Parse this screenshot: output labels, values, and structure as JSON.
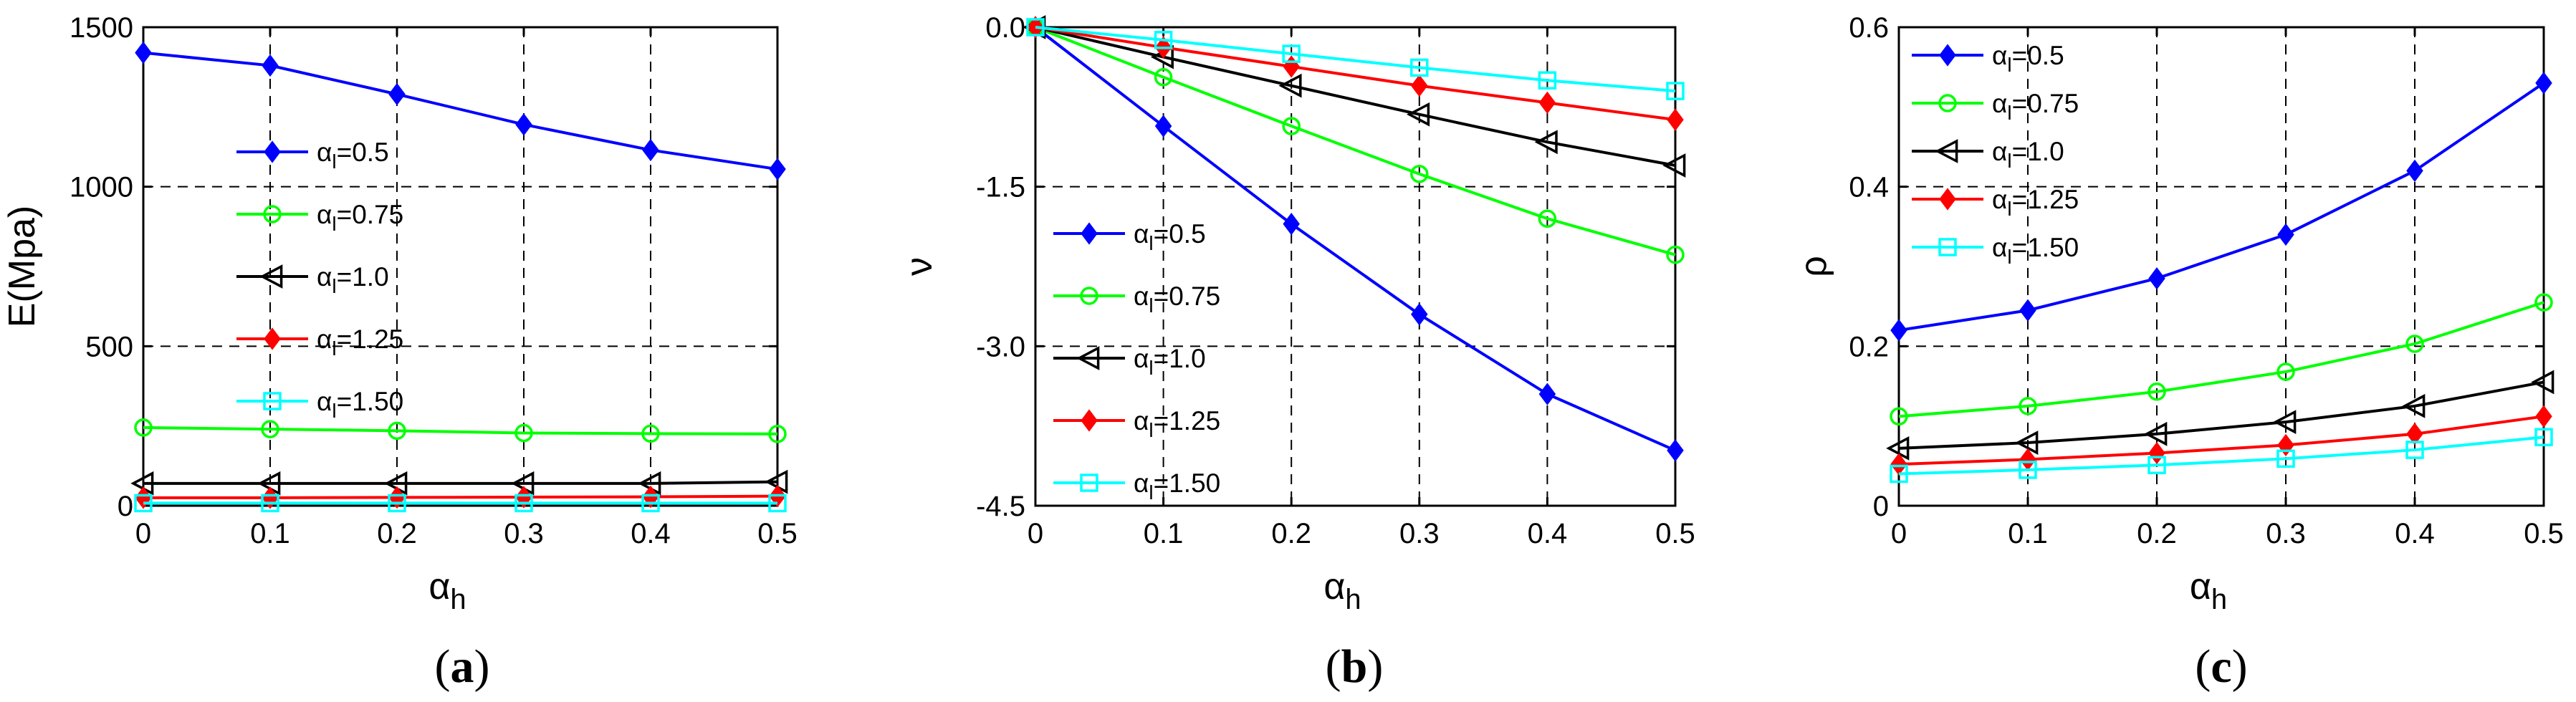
{
  "figure": {
    "panels": [
      {
        "id": "a",
        "paren_open": "(",
        "letter": "a",
        "paren_close": ")"
      },
      {
        "id": "b",
        "paren_open": "(",
        "letter": "b",
        "paren_close": ")"
      },
      {
        "id": "c",
        "paren_open": "(",
        "letter": "c",
        "paren_close": ")"
      }
    ]
  },
  "chart_data": [
    {
      "type": "line",
      "panel": "a",
      "xlabel": "α_h",
      "ylabel": "E(Mpa)",
      "xlim": [
        0,
        0.5
      ],
      "ylim": [
        0,
        1500
      ],
      "xticks": [
        0,
        0.1,
        0.2,
        0.3,
        0.4,
        0.5
      ],
      "xtick_labels": [
        "0",
        "0.1",
        "0.2",
        "0.3",
        "0.4",
        "0.5"
      ],
      "yticks": [
        0,
        500,
        1000,
        1500
      ],
      "ytick_labels": [
        "0",
        "500",
        "1000",
        "1500"
      ],
      "grid": true,
      "legend_position": "center-left",
      "x": [
        0,
        0.1,
        0.2,
        0.3,
        0.4,
        0.5
      ],
      "series": [
        {
          "name": "α_l=0.5",
          "legend_prefix": "α",
          "legend_sub": "l",
          "legend_value": "=0.5",
          "color": "#0000ff",
          "marker": "diamond-filled",
          "values": [
            1420,
            1380,
            1290,
            1195,
            1115,
            1055
          ]
        },
        {
          "name": "α_l=0.75",
          "legend_prefix": "α",
          "legend_sub": "l",
          "legend_value": "=0.75",
          "color": "#00ff00",
          "marker": "circle",
          "values": [
            245,
            240,
            235,
            228,
            226,
            225
          ]
        },
        {
          "name": "α_l=1.0",
          "legend_prefix": "α",
          "legend_sub": "l",
          "legend_value": "=1.0",
          "color": "#000000",
          "marker": "triangle-left",
          "values": [
            70,
            70,
            70,
            70,
            70,
            75
          ]
        },
        {
          "name": "α_l=1.25",
          "legend_prefix": "α",
          "legend_sub": "l",
          "legend_value": "=1.25",
          "color": "#ff0000",
          "marker": "diamond-filled",
          "values": [
            25,
            25,
            26,
            27,
            28,
            30
          ]
        },
        {
          "name": "α_l=1.50",
          "legend_prefix": "α",
          "legend_sub": "l",
          "legend_value": "=1.50",
          "color": "#00ffff",
          "marker": "square",
          "values": [
            8,
            8,
            8,
            8,
            8,
            8
          ]
        }
      ]
    },
    {
      "type": "line",
      "panel": "b",
      "xlabel": "α_h",
      "ylabel": "ν",
      "xlim": [
        0,
        0.5
      ],
      "ylim": [
        -4.5,
        0
      ],
      "xticks": [
        0,
        0.1,
        0.2,
        0.3,
        0.4,
        0.5
      ],
      "xtick_labels": [
        "0",
        "0.1",
        "0.2",
        "0.3",
        "0.4",
        "0.5"
      ],
      "yticks": [
        0,
        -1.5,
        -3.0,
        -4.5
      ],
      "ytick_labels": [
        "0.0",
        "-1.5",
        "-3.0",
        "-4.5"
      ],
      "grid": true,
      "legend_position": "center-left",
      "x": [
        0,
        0.1,
        0.2,
        0.3,
        0.4,
        0.5
      ],
      "series": [
        {
          "name": "α_l=0.5",
          "legend_prefix": "α",
          "legend_sub": "l",
          "legend_value": "=0.5",
          "color": "#0000ff",
          "marker": "diamond-filled",
          "values": [
            0,
            -0.93,
            -1.85,
            -2.7,
            -3.45,
            -3.98
          ]
        },
        {
          "name": "α_l=0.75",
          "legend_prefix": "α",
          "legend_sub": "l",
          "legend_value": "=0.75",
          "color": "#00ff00",
          "marker": "circle",
          "values": [
            0,
            -0.47,
            -0.93,
            -1.38,
            -1.8,
            -2.14
          ]
        },
        {
          "name": "α_l=1.0",
          "legend_prefix": "α",
          "legend_sub": "l",
          "legend_value": "=1.0",
          "color": "#000000",
          "marker": "triangle-left",
          "values": [
            0,
            -0.28,
            -0.55,
            -0.82,
            -1.08,
            -1.3
          ]
        },
        {
          "name": "α_l=1.25",
          "legend_prefix": "α",
          "legend_sub": "l",
          "legend_value": "=1.25",
          "color": "#ff0000",
          "marker": "diamond-filled",
          "values": [
            0,
            -0.19,
            -0.37,
            -0.55,
            -0.71,
            -0.87
          ]
        },
        {
          "name": "α_l=1.50",
          "legend_prefix": "α",
          "legend_sub": "l",
          "legend_value": "=1.50",
          "color": "#00ffff",
          "marker": "square",
          "values": [
            0,
            -0.12,
            -0.25,
            -0.38,
            -0.5,
            -0.6
          ]
        }
      ]
    },
    {
      "type": "line",
      "panel": "c",
      "xlabel": "α_h",
      "ylabel": "ρ",
      "xlim": [
        0,
        0.5
      ],
      "ylim": [
        0,
        0.6
      ],
      "xticks": [
        0,
        0.1,
        0.2,
        0.3,
        0.4,
        0.5
      ],
      "xtick_labels": [
        "0",
        "0.1",
        "0.2",
        "0.3",
        "0.4",
        "0.5"
      ],
      "yticks": [
        0,
        0.2,
        0.4,
        0.6
      ],
      "ytick_labels": [
        "0",
        "0.2",
        "0.4",
        "0.6"
      ],
      "grid": true,
      "legend_position": "top-left",
      "x": [
        0,
        0.1,
        0.2,
        0.3,
        0.4,
        0.5
      ],
      "series": [
        {
          "name": "α_l=0.5",
          "legend_prefix": "α",
          "legend_sub": "l",
          "legend_value": "=0.5",
          "color": "#0000ff",
          "marker": "diamond-filled",
          "values": [
            0.22,
            0.245,
            0.285,
            0.34,
            0.42,
            0.53
          ]
        },
        {
          "name": "α_l=0.75",
          "legend_prefix": "α",
          "legend_sub": "l",
          "legend_value": "=0.75",
          "color": "#00ff00",
          "marker": "circle",
          "values": [
            0.112,
            0.125,
            0.143,
            0.168,
            0.203,
            0.255
          ]
        },
        {
          "name": "α_l=1.0",
          "legend_prefix": "α",
          "legend_sub": "l",
          "legend_value": "=1.0",
          "color": "#000000",
          "marker": "triangle-left",
          "values": [
            0.072,
            0.079,
            0.09,
            0.105,
            0.125,
            0.155
          ]
        },
        {
          "name": "α_l=1.25",
          "legend_prefix": "α",
          "legend_sub": "l",
          "legend_value": "=1.25",
          "color": "#ff0000",
          "marker": "diamond-filled",
          "values": [
            0.052,
            0.058,
            0.066,
            0.076,
            0.09,
            0.112
          ]
        },
        {
          "name": "α_l=1.50",
          "legend_prefix": "α",
          "legend_sub": "l",
          "legend_value": "=1.50",
          "color": "#00ffff",
          "marker": "square",
          "values": [
            0.04,
            0.045,
            0.051,
            0.059,
            0.07,
            0.086
          ]
        }
      ]
    }
  ]
}
